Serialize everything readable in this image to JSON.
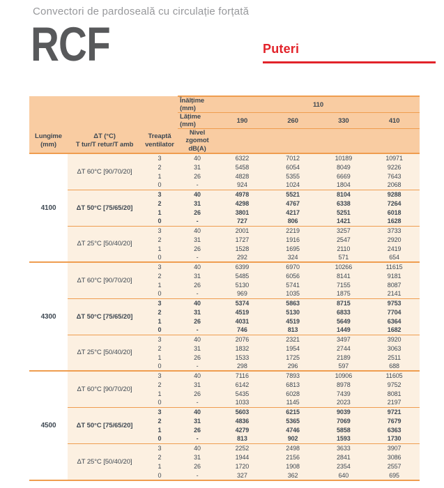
{
  "page": {
    "subtitle": "Convectori de pardoseală cu circulație forțată",
    "product_code": "RCF",
    "section_title": "Puteri"
  },
  "colors": {
    "accent_red": "#e2232a",
    "table_header_bg": "#f9cca2",
    "table_row_bg": "#fcf0e1",
    "table_line_orange": "#ef9d4f",
    "text_dark": "#3e4852",
    "title_gray": "#58595b",
    "subtitle_gray": "#97989b"
  },
  "table": {
    "height_label": "Înălțime (mm)",
    "height_value": "110",
    "width_label": "Lățime (mm)",
    "width_values": [
      "190",
      "260",
      "330",
      "410"
    ],
    "col_headers": {
      "length": "Lungime\n(mm)",
      "delta": "ΔT (°C)\nT tur/T retur/T amb",
      "fan": "Treaptă\nventilator",
      "noise": "Nivel zgomot\ndB(A)"
    },
    "groups": [
      {
        "length": "4100",
        "sections": [
          {
            "delta": "ΔT 60°C [90/70/20]",
            "bold": false,
            "rows": [
              {
                "fan": "3",
                "noise": "40",
                "values": [
                  "6322",
                  "7012",
                  "10189",
                  "10971"
                ]
              },
              {
                "fan": "2",
                "noise": "31",
                "values": [
                  "5458",
                  "6054",
                  "8049",
                  "9226"
                ]
              },
              {
                "fan": "1",
                "noise": "26",
                "values": [
                  "4828",
                  "5355",
                  "6669",
                  "7643"
                ]
              },
              {
                "fan": "0",
                "noise": "-",
                "values": [
                  "924",
                  "1024",
                  "1804",
                  "2068"
                ]
              }
            ]
          },
          {
            "delta": "ΔT 50°C [75/65/20]",
            "bold": true,
            "rows": [
              {
                "fan": "3",
                "noise": "40",
                "values": [
                  "4978",
                  "5521",
                  "8104",
                  "9288"
                ]
              },
              {
                "fan": "2",
                "noise": "31",
                "values": [
                  "4298",
                  "4767",
                  "6338",
                  "7264"
                ]
              },
              {
                "fan": "1",
                "noise": "26",
                "values": [
                  "3801",
                  "4217",
                  "5251",
                  "6018"
                ]
              },
              {
                "fan": "0",
                "noise": "-",
                "values": [
                  "727",
                  "806",
                  "1421",
                  "1628"
                ]
              }
            ]
          },
          {
            "delta": "ΔT 25°C [50/40/20]",
            "bold": false,
            "rows": [
              {
                "fan": "3",
                "noise": "40",
                "values": [
                  "2001",
                  "2219",
                  "3257",
                  "3733"
                ]
              },
              {
                "fan": "2",
                "noise": "31",
                "values": [
                  "1727",
                  "1916",
                  "2547",
                  "2920"
                ]
              },
              {
                "fan": "1",
                "noise": "26",
                "values": [
                  "1528",
                  "1695",
                  "2110",
                  "2419"
                ]
              },
              {
                "fan": "0",
                "noise": "-",
                "values": [
                  "292",
                  "324",
                  "571",
                  "654"
                ]
              }
            ]
          }
        ]
      },
      {
        "length": "4300",
        "sections": [
          {
            "delta": "ΔT 60°C [90/70/20]",
            "bold": false,
            "rows": [
              {
                "fan": "3",
                "noise": "40",
                "values": [
                  "6399",
                  "6970",
                  "10266",
                  "11615"
                ]
              },
              {
                "fan": "2",
                "noise": "31",
                "values": [
                  "5485",
                  "6056",
                  "8141",
                  "9181"
                ]
              },
              {
                "fan": "1",
                "noise": "26",
                "values": [
                  "5130",
                  "5741",
                  "7155",
                  "8087"
                ]
              },
              {
                "fan": "0",
                "noise": "-",
                "values": [
                  "969",
                  "1035",
                  "1875",
                  "2141"
                ]
              }
            ]
          },
          {
            "delta": "ΔT 50°C [75/65/20]",
            "bold": true,
            "rows": [
              {
                "fan": "3",
                "noise": "40",
                "values": [
                  "5374",
                  "5863",
                  "8715",
                  "9753"
                ]
              },
              {
                "fan": "2",
                "noise": "31",
                "values": [
                  "4519",
                  "5130",
                  "6833",
                  "7704"
                ]
              },
              {
                "fan": "1",
                "noise": "26",
                "values": [
                  "4031",
                  "4519",
                  "5649",
                  "6364"
                ]
              },
              {
                "fan": "0",
                "noise": "-",
                "values": [
                  "746",
                  "813",
                  "1449",
                  "1682"
                ]
              }
            ]
          },
          {
            "delta": "ΔT 25°C [50/40/20]",
            "bold": false,
            "rows": [
              {
                "fan": "3",
                "noise": "40",
                "values": [
                  "2076",
                  "2321",
                  "3497",
                  "3920"
                ]
              },
              {
                "fan": "2",
                "noise": "31",
                "values": [
                  "1832",
                  "1954",
                  "2744",
                  "3063"
                ]
              },
              {
                "fan": "1",
                "noise": "26",
                "values": [
                  "1533",
                  "1725",
                  "2189",
                  "2511"
                ]
              },
              {
                "fan": "0",
                "noise": "-",
                "values": [
                  "298",
                  "296",
                  "597",
                  "688"
                ]
              }
            ]
          }
        ]
      },
      {
        "length": "4500",
        "sections": [
          {
            "delta": "ΔT 60°C [90/70/20]",
            "bold": false,
            "rows": [
              {
                "fan": "3",
                "noise": "40",
                "values": [
                  "7116",
                  "7893",
                  "10906",
                  "11605"
                ]
              },
              {
                "fan": "2",
                "noise": "31",
                "values": [
                  "6142",
                  "6813",
                  "8978",
                  "9752"
                ]
              },
              {
                "fan": "1",
                "noise": "26",
                "values": [
                  "5435",
                  "6028",
                  "7439",
                  "8081"
                ]
              },
              {
                "fan": "0",
                "noise": "-",
                "values": [
                  "1033",
                  "1145",
                  "2023",
                  "2197"
                ]
              }
            ]
          },
          {
            "delta": "ΔT 50°C [75/65/20]",
            "bold": true,
            "rows": [
              {
                "fan": "3",
                "noise": "40",
                "values": [
                  "5603",
                  "6215",
                  "9039",
                  "9721"
                ]
              },
              {
                "fan": "2",
                "noise": "31",
                "values": [
                  "4836",
                  "5365",
                  "7069",
                  "7679"
                ]
              },
              {
                "fan": "1",
                "noise": "26",
                "values": [
                  "4279",
                  "4746",
                  "5858",
                  "6363"
                ]
              },
              {
                "fan": "0",
                "noise": "-",
                "values": [
                  "813",
                  "902",
                  "1593",
                  "1730"
                ]
              }
            ]
          },
          {
            "delta": "ΔT 25°C [50/40/20]",
            "bold": false,
            "rows": [
              {
                "fan": "3",
                "noise": "40",
                "values": [
                  "2252",
                  "2498",
                  "3633",
                  "3907"
                ]
              },
              {
                "fan": "2",
                "noise": "31",
                "values": [
                  "1944",
                  "2156",
                  "2841",
                  "3086"
                ]
              },
              {
                "fan": "1",
                "noise": "26",
                "values": [
                  "1720",
                  "1908",
                  "2354",
                  "2557"
                ]
              },
              {
                "fan": "0",
                "noise": "-",
                "values": [
                  "327",
                  "362",
                  "640",
                  "695"
                ]
              }
            ]
          }
        ]
      }
    ]
  }
}
